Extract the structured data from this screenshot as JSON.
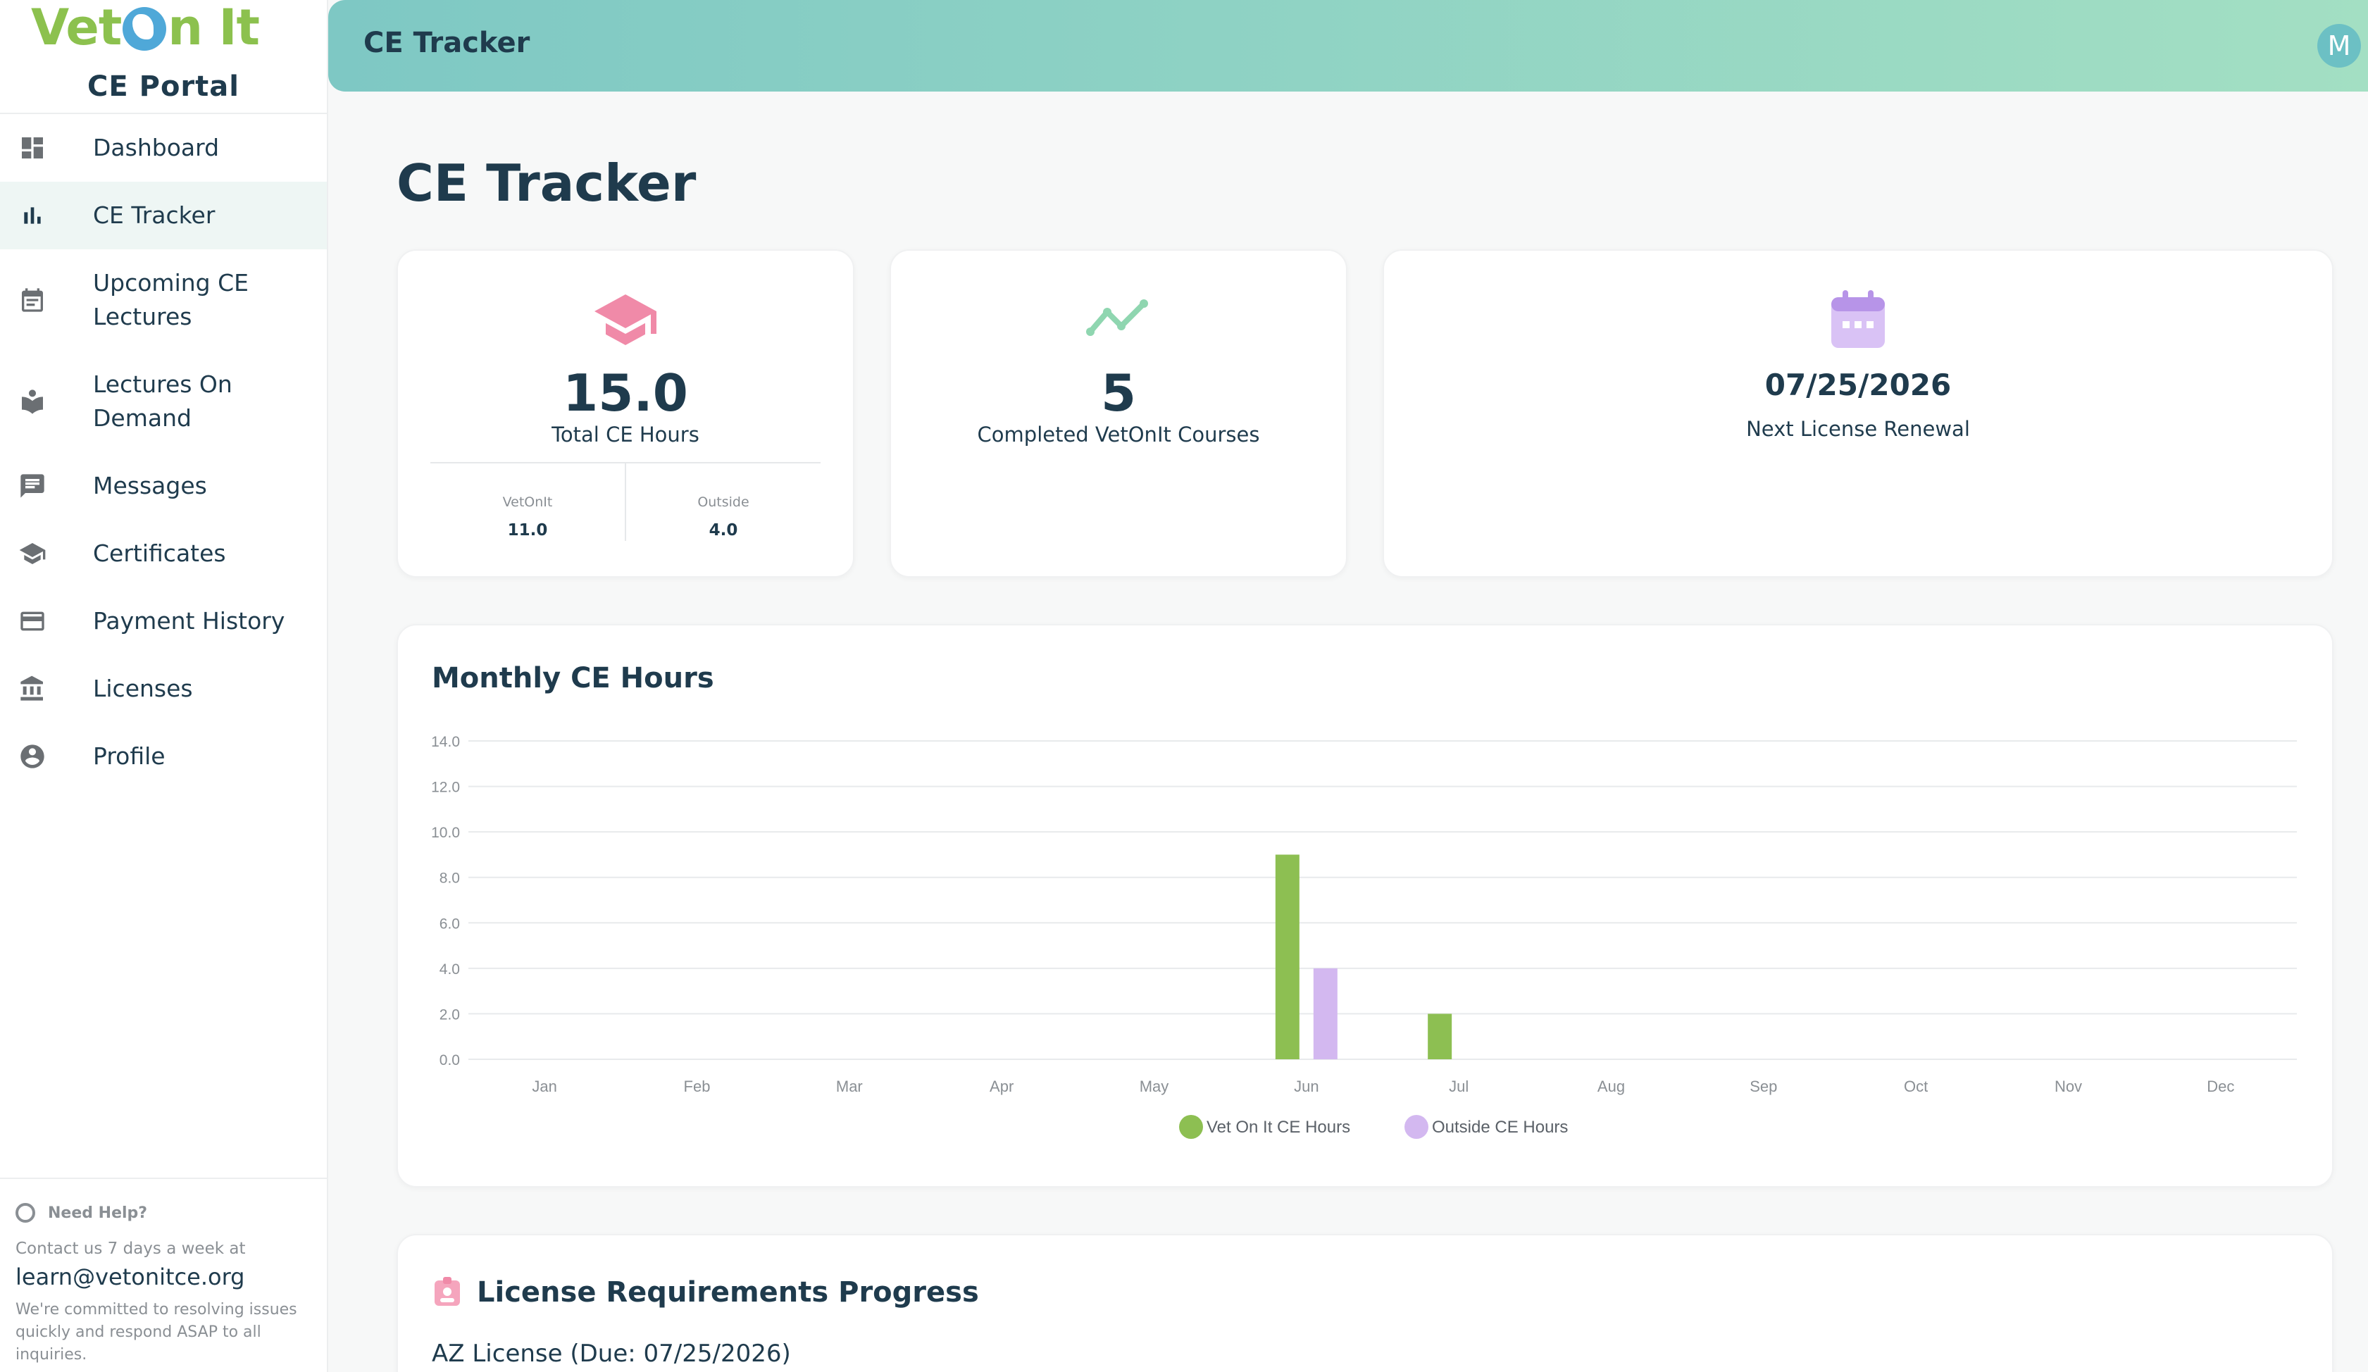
{
  "brand": {
    "logo_left": "Vet",
    "logo_right": "n It",
    "portal": "CE Portal"
  },
  "sidebar": {
    "items": [
      {
        "label": "Dashboard",
        "icon": "dashboard-icon"
      },
      {
        "label": "CE Tracker",
        "icon": "bar-chart-icon",
        "active": true
      },
      {
        "label": "Upcoming CE Lectures",
        "icon": "calendar-list-icon"
      },
      {
        "label": "Lectures On Demand",
        "icon": "book-reader-icon"
      },
      {
        "label": "Messages",
        "icon": "message-icon"
      },
      {
        "label": "Certificates",
        "icon": "graduation-cap-icon"
      },
      {
        "label": "Payment History",
        "icon": "credit-card-icon"
      },
      {
        "label": "Licenses",
        "icon": "bank-icon"
      },
      {
        "label": "Profile",
        "icon": "account-circle-icon"
      }
    ]
  },
  "help": {
    "title": "Need Help?",
    "line": "Contact us 7 days a week at",
    "email": "learn@vetonitce.org",
    "note": "We're committed to resolving issues quickly and respond ASAP to all inquiries."
  },
  "header": {
    "title": "CE Tracker",
    "avatar_initial": "M"
  },
  "page": {
    "title": "CE Tracker"
  },
  "stats": {
    "total": {
      "value": "15.0",
      "label": "Total CE Hours",
      "vetonit_label": "VetOnIt",
      "vetonit_value": "11.0",
      "outside_label": "Outside",
      "outside_value": "4.0"
    },
    "courses": {
      "value": "5",
      "label": "Completed VetOnIt Courses"
    },
    "renewal": {
      "value": "07/25/2026",
      "label": "Next License Renewal"
    }
  },
  "chart_card": {
    "title": "Monthly CE Hours"
  },
  "chart_data": {
    "type": "bar",
    "categories": [
      "Jan",
      "Feb",
      "Mar",
      "Apr",
      "May",
      "Jun",
      "Jul",
      "Aug",
      "Sep",
      "Oct",
      "Nov",
      "Dec"
    ],
    "series": [
      {
        "name": "Vet On It CE Hours",
        "color": "#8dbf52",
        "values": [
          0,
          0,
          0,
          0,
          0,
          9,
          2,
          0,
          0,
          0,
          0,
          0
        ]
      },
      {
        "name": "Outside CE Hours",
        "color": "#d3b8f0",
        "values": [
          0,
          0,
          0,
          0,
          0,
          4,
          0,
          0,
          0,
          0,
          0,
          0
        ]
      }
    ],
    "yticks": [
      "0.0",
      "2.0",
      "4.0",
      "6.0",
      "8.0",
      "10.0",
      "12.0",
      "14.0"
    ],
    "ylim": [
      0,
      14
    ],
    "grid": true,
    "legend": "bottom"
  },
  "requirements": {
    "title": "License Requirements Progress",
    "license": "AZ License (Due: 07/25/2026)"
  },
  "colors": {
    "accent": "#7ec8c4",
    "navy": "#1f3b4d",
    "green": "#8dbf52",
    "purple": "#d3b8f0",
    "pink": "#f08aa8"
  }
}
